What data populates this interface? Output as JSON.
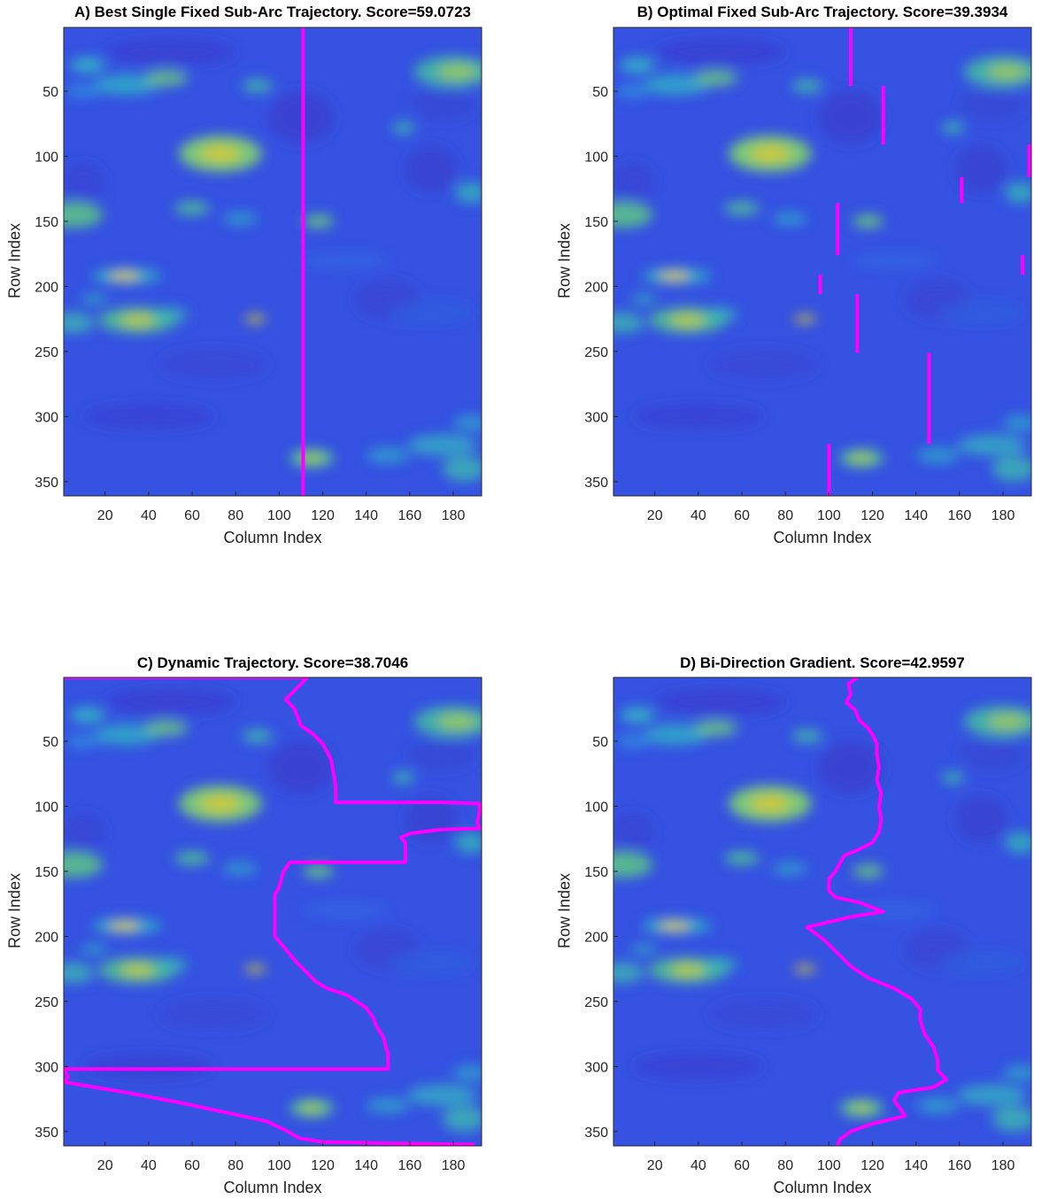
{
  "chart_data": [
    {
      "type": "heatmap",
      "title": "A) Best Single Fixed Sub-Arc Trajectory. Score=59.0723",
      "xlabel": "Column Index",
      "ylabel": "Row Index",
      "xlim": [
        1,
        193
      ],
      "ylim": [
        1,
        361
      ],
      "y_reversed": true,
      "xticks": [
        20,
        40,
        60,
        80,
        100,
        120,
        140,
        160,
        180
      ],
      "yticks": [
        50,
        100,
        150,
        200,
        250,
        300,
        350
      ],
      "colormap": "parula",
      "line_color": "#ff00ff",
      "trajectory_segments": [
        [
          [
            111,
            1
          ],
          [
            111,
            361
          ]
        ]
      ]
    },
    {
      "type": "heatmap",
      "title": "B) Optimal Fixed Sub-Arc Trajectory. Score=39.3934",
      "xlabel": "Column Index",
      "ylabel": "Row Index",
      "xlim": [
        1,
        193
      ],
      "ylim": [
        1,
        361
      ],
      "y_reversed": true,
      "xticks": [
        20,
        40,
        60,
        80,
        100,
        120,
        140,
        160,
        180
      ],
      "yticks": [
        50,
        100,
        150,
        200,
        250,
        300,
        350
      ],
      "colormap": "parula",
      "line_color": "#ff00ff",
      "trajectory_segments": [
        [
          [
            110,
            1
          ],
          [
            110,
            46
          ]
        ],
        [
          [
            125,
            46
          ],
          [
            125,
            91
          ]
        ],
        [
          [
            192,
            91
          ],
          [
            192,
            116
          ]
        ],
        [
          [
            161,
            116
          ],
          [
            161,
            136
          ]
        ],
        [
          [
            104,
            136
          ],
          [
            104,
            176
          ]
        ],
        [
          [
            189,
            176
          ],
          [
            189,
            191
          ]
        ],
        [
          [
            96,
            191
          ],
          [
            96,
            206
          ]
        ],
        [
          [
            113,
            206
          ],
          [
            113,
            251
          ]
        ],
        [
          [
            146,
            251
          ],
          [
            146,
            321
          ]
        ],
        [
          [
            100,
            321
          ],
          [
            100,
            361
          ]
        ]
      ]
    },
    {
      "type": "heatmap",
      "title": "C) Dynamic Trajectory. Score=38.7046",
      "xlabel": "Column Index",
      "ylabel": "Row Index",
      "xlim": [
        1,
        193
      ],
      "ylim": [
        1,
        361
      ],
      "y_reversed": true,
      "xticks": [
        20,
        40,
        60,
        80,
        100,
        120,
        140,
        160,
        180
      ],
      "yticks": [
        50,
        100,
        150,
        200,
        250,
        300,
        350
      ],
      "colormap": "parula",
      "line_color": "#ff00ff",
      "trajectory": [
        [
          1,
          1
        ],
        [
          113,
          1
        ],
        [
          103,
          18
        ],
        [
          107,
          25
        ],
        [
          110,
          38
        ],
        [
          116,
          45
        ],
        [
          120,
          52
        ],
        [
          122,
          58
        ],
        [
          124,
          65
        ],
        [
          125,
          75
        ],
        [
          126,
          85
        ],
        [
          126,
          97
        ],
        [
          175,
          97
        ],
        [
          192,
          98
        ],
        [
          192,
          105
        ],
        [
          191,
          112
        ],
        [
          192,
          117
        ],
        [
          174,
          118
        ],
        [
          160,
          121
        ],
        [
          156,
          124
        ],
        [
          158,
          128
        ],
        [
          158,
          138
        ],
        [
          158,
          143
        ],
        [
          105,
          143
        ],
        [
          102,
          150
        ],
        [
          100,
          162
        ],
        [
          98,
          168
        ],
        [
          98,
          200
        ],
        [
          103,
          210
        ],
        [
          108,
          220
        ],
        [
          114,
          230
        ],
        [
          117,
          235
        ],
        [
          122,
          240
        ],
        [
          131,
          245
        ],
        [
          140,
          255
        ],
        [
          143,
          262
        ],
        [
          145,
          270
        ],
        [
          148,
          278
        ],
        [
          149,
          285
        ],
        [
          150,
          290
        ],
        [
          150,
          302
        ],
        [
          1,
          302
        ],
        [
          3,
          308
        ],
        [
          1,
          312
        ],
        [
          30,
          320
        ],
        [
          55,
          328
        ],
        [
          80,
          337
        ],
        [
          94,
          342
        ],
        [
          103,
          349
        ],
        [
          109,
          355
        ],
        [
          120,
          358
        ],
        [
          150,
          359
        ],
        [
          190,
          360
        ]
      ]
    },
    {
      "type": "heatmap",
      "title": "D) Bi-Direction Gradient. Score=42.9597",
      "xlabel": "Column Index",
      "ylabel": "Row Index",
      "xlim": [
        1,
        193
      ],
      "ylim": [
        1,
        361
      ],
      "y_reversed": true,
      "xticks": [
        20,
        40,
        60,
        80,
        100,
        120,
        140,
        160,
        180
      ],
      "yticks": [
        50,
        100,
        150,
        200,
        250,
        300,
        350
      ],
      "colormap": "parula",
      "line_color": "#ff00ff",
      "trajectory": [
        [
          113,
          1
        ],
        [
          109,
          6
        ],
        [
          110,
          14
        ],
        [
          108,
          20
        ],
        [
          112,
          26
        ],
        [
          114,
          34
        ],
        [
          118,
          40
        ],
        [
          120,
          45
        ],
        [
          122,
          52
        ],
        [
          122,
          60
        ],
        [
          123,
          70
        ],
        [
          122,
          80
        ],
        [
          124,
          90
        ],
        [
          123,
          100
        ],
        [
          124,
          110
        ],
        [
          123,
          120
        ],
        [
          120,
          128
        ],
        [
          114,
          133
        ],
        [
          107,
          138
        ],
        [
          105,
          144
        ],
        [
          103,
          150
        ],
        [
          100,
          156
        ],
        [
          100,
          165
        ],
        [
          103,
          170
        ],
        [
          114,
          174
        ],
        [
          125,
          181
        ],
        [
          110,
          185
        ],
        [
          90,
          193
        ],
        [
          98,
          203
        ],
        [
          104,
          213
        ],
        [
          110,
          223
        ],
        [
          118,
          232
        ],
        [
          130,
          240
        ],
        [
          138,
          248
        ],
        [
          142,
          256
        ],
        [
          142,
          265
        ],
        [
          144,
          275
        ],
        [
          148,
          285
        ],
        [
          150,
          295
        ],
        [
          150,
          303
        ],
        [
          154,
          310
        ],
        [
          148,
          316
        ],
        [
          132,
          320
        ],
        [
          130,
          326
        ],
        [
          135,
          338
        ],
        [
          120,
          344
        ],
        [
          110,
          350
        ],
        [
          105,
          356
        ],
        [
          104,
          361
        ]
      ]
    }
  ]
}
